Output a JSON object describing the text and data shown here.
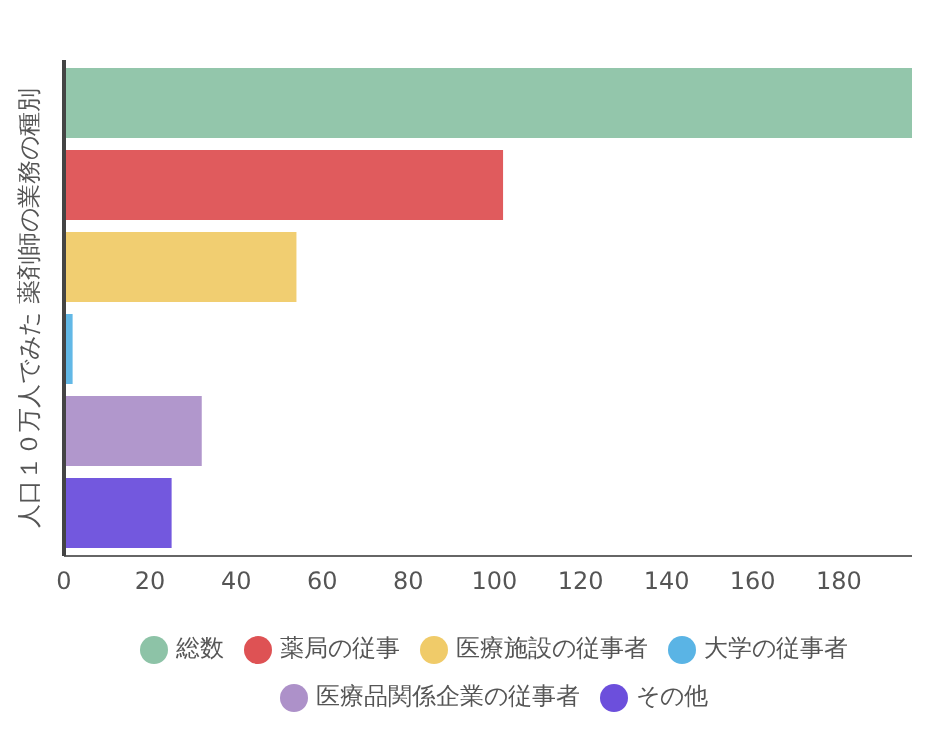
{
  "chart_data": {
    "type": "bar",
    "orientation": "horizontal",
    "ylabel": "人口１０万人でみた 薬剤師の業務の種別",
    "categories": [
      null
    ],
    "series": [
      {
        "name": "総数",
        "color": "#8dc3a7",
        "values": [
          197
        ]
      },
      {
        "name": "薬局の従事",
        "color": "#de5254",
        "values": [
          102
        ]
      },
      {
        "name": "医療施設の従事者",
        "color": "#f0cb69",
        "values": [
          54
        ]
      },
      {
        "name": "大学の従事者",
        "color": "#5ab4e5",
        "values": [
          2
        ]
      },
      {
        "name": "医療品関係企業の従事者",
        "color": "#ad91c9",
        "values": [
          32
        ]
      },
      {
        "name": "その他",
        "color": "#6c4fdc",
        "values": [
          25
        ]
      }
    ],
    "xlim": [
      0,
      197
    ],
    "xticks": [
      0,
      20,
      40,
      60,
      80,
      100,
      120,
      140,
      160,
      180
    ],
    "grid": false,
    "legend": "bottom"
  }
}
